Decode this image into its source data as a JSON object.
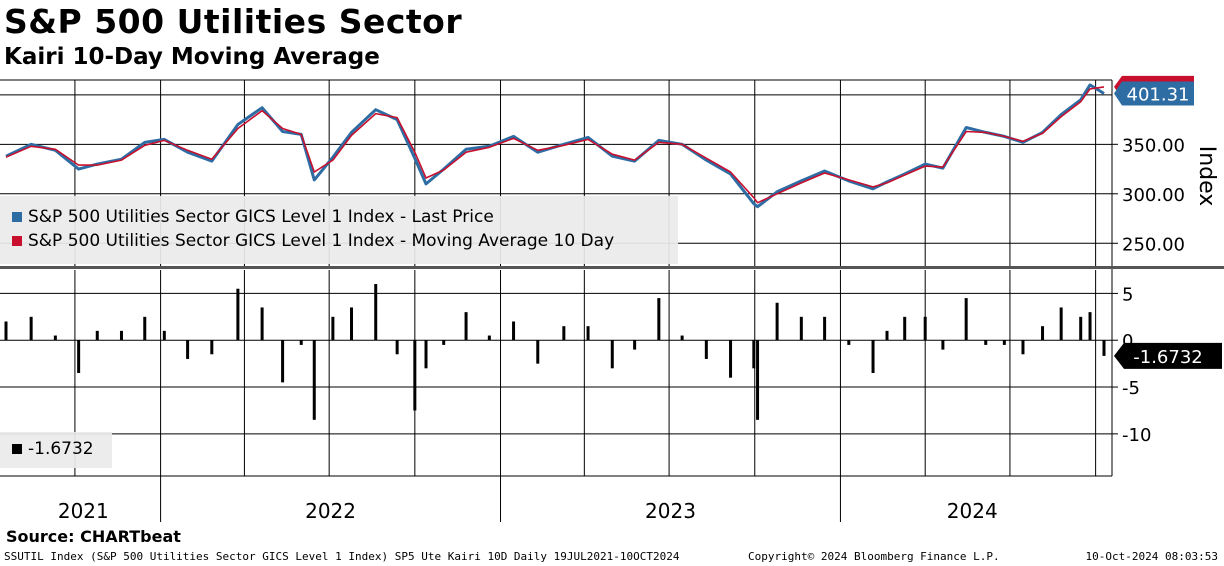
{
  "header": {
    "title": "S&P 500 Utilities Sector",
    "subtitle": "Kairi 10-Day Moving Average"
  },
  "source": "Source: CHARTbeat",
  "footer": {
    "left": "SSUTIL Index (S&P 500 Utilities Sector GICS Level 1 Index) SP5 Ute Kairi 10D  Daily 19JUL2021-10OCT2024",
    "center": "Copyright© 2024 Bloomberg Finance L.P.",
    "right": "10-Oct-2024 08:03:53"
  },
  "colors": {
    "price": "#2e6da4",
    "ma": "#c8102e",
    "kairi": "#000000",
    "legend_bg": "#ebebeb"
  },
  "chart_data": [
    {
      "type": "line",
      "title": "S&P 500 Utilities Sector",
      "ylabel": "Index",
      "ylim": [
        225,
        415
      ],
      "yticks": [
        250,
        300,
        350
      ],
      "ytick_labels": [
        "250.00",
        "300.00",
        "350.00"
      ],
      "x_labels": [
        "2021",
        "2022",
        "2023",
        "2024"
      ],
      "date_range": [
        "2021-07-19",
        "2024-10-10"
      ],
      "grid": true,
      "legend_position": "lower-left",
      "last_value_label": "401.31",
      "series": [
        {
          "name": "S&P 500 Utilities Sector GICS Level 1 Index - Last Price",
          "color": "#2e6da4",
          "x": [
            "2021-07-19",
            "2021-08-15",
            "2021-09-10",
            "2021-10-05",
            "2021-10-25",
            "2021-11-20",
            "2021-12-15",
            "2022-01-05",
            "2022-01-30",
            "2022-02-25",
            "2022-03-25",
            "2022-04-20",
            "2022-05-12",
            "2022-06-01",
            "2022-06-15",
            "2022-07-05",
            "2022-07-25",
            "2022-08-20",
            "2022-09-12",
            "2022-10-01",
            "2022-10-13",
            "2022-11-01",
            "2022-11-25",
            "2022-12-20",
            "2023-01-15",
            "2023-02-10",
            "2023-03-10",
            "2023-04-05",
            "2023-05-01",
            "2023-05-25",
            "2023-06-20",
            "2023-07-15",
            "2023-08-10",
            "2023-09-05",
            "2023-09-30",
            "2023-10-04",
            "2023-10-25",
            "2023-11-20",
            "2023-12-15",
            "2024-01-10",
            "2024-02-05",
            "2024-02-20",
            "2024-03-10",
            "2024-04-01",
            "2024-04-20",
            "2024-05-15",
            "2024-06-05",
            "2024-06-25",
            "2024-07-15",
            "2024-08-05",
            "2024-08-25",
            "2024-09-15",
            "2024-09-25",
            "2024-10-10"
          ],
          "values": [
            338,
            350,
            344,
            325,
            330,
            335,
            352,
            355,
            342,
            333,
            370,
            387,
            363,
            360,
            314,
            337,
            362,
            385,
            375,
            336,
            310,
            325,
            345,
            348,
            358,
            342,
            350,
            357,
            338,
            333,
            354,
            350,
            334,
            320,
            290,
            287,
            302,
            313,
            323,
            313,
            305,
            312,
            320,
            330,
            326,
            367,
            362,
            358,
            352,
            362,
            380,
            395,
            410,
            401.31
          ]
        },
        {
          "name": "S&P 500 Utilities Sector GICS Level 1 Index - Moving Average 10 Day",
          "color": "#c8102e",
          "x": [
            "2021-07-19",
            "2021-08-15",
            "2021-09-10",
            "2021-10-05",
            "2021-10-25",
            "2021-11-20",
            "2021-12-15",
            "2022-01-05",
            "2022-01-30",
            "2022-02-25",
            "2022-03-25",
            "2022-04-20",
            "2022-05-12",
            "2022-06-01",
            "2022-06-15",
            "2022-07-05",
            "2022-07-25",
            "2022-08-20",
            "2022-09-12",
            "2022-10-01",
            "2022-10-13",
            "2022-11-01",
            "2022-11-25",
            "2022-12-20",
            "2023-01-15",
            "2023-02-10",
            "2023-03-10",
            "2023-04-05",
            "2023-05-01",
            "2023-05-25",
            "2023-06-20",
            "2023-07-15",
            "2023-08-10",
            "2023-09-05",
            "2023-09-30",
            "2023-10-04",
            "2023-10-25",
            "2023-11-20",
            "2023-12-15",
            "2024-01-10",
            "2024-02-05",
            "2024-02-20",
            "2024-03-10",
            "2024-04-01",
            "2024-04-20",
            "2024-05-15",
            "2024-06-05",
            "2024-06-25",
            "2024-07-15",
            "2024-08-05",
            "2024-08-25",
            "2024-09-15",
            "2024-09-25",
            "2024-10-10"
          ],
          "values": [
            337,
            348,
            345,
            329,
            329,
            334,
            349,
            354,
            344,
            335,
            366,
            384,
            366,
            360,
            322,
            334,
            359,
            381,
            377,
            342,
            316,
            324,
            342,
            347,
            356,
            344,
            349,
            355,
            340,
            334,
            352,
            350,
            336,
            322,
            296,
            291,
            300,
            311,
            321,
            314,
            307,
            311,
            319,
            328,
            327,
            363,
            362,
            358,
            353,
            361,
            378,
            393,
            406,
            408
          ]
        }
      ]
    },
    {
      "type": "bar",
      "title": "Kairi 10-Day Moving Average",
      "ylim": [
        -14.5,
        7.5
      ],
      "yticks": [
        -10,
        -5,
        0,
        5
      ],
      "ytick_labels": [
        "-10",
        "-5",
        "0",
        "5"
      ],
      "x_labels": [
        "2021",
        "2022",
        "2023",
        "2024"
      ],
      "date_range": [
        "2021-07-19",
        "2024-10-10"
      ],
      "grid": true,
      "legend_position": "lower-left",
      "last_value_label": "-1.6732",
      "series": [
        {
          "name": "-1.6732",
          "color": "#000000",
          "x": [
            "2021-07-19",
            "2021-08-15",
            "2021-09-10",
            "2021-10-05",
            "2021-10-25",
            "2021-11-20",
            "2021-12-15",
            "2022-01-05",
            "2022-01-30",
            "2022-02-25",
            "2022-03-25",
            "2022-04-20",
            "2022-05-12",
            "2022-06-01",
            "2022-06-15",
            "2022-07-05",
            "2022-07-25",
            "2022-08-20",
            "2022-09-12",
            "2022-10-01",
            "2022-10-13",
            "2022-11-01",
            "2022-11-25",
            "2022-12-20",
            "2023-01-15",
            "2023-02-10",
            "2023-03-10",
            "2023-04-05",
            "2023-05-01",
            "2023-05-25",
            "2023-06-20",
            "2023-07-15",
            "2023-08-10",
            "2023-09-05",
            "2023-09-30",
            "2023-10-04",
            "2023-10-25",
            "2023-11-20",
            "2023-12-15",
            "2024-01-10",
            "2024-02-05",
            "2024-02-20",
            "2024-03-10",
            "2024-04-01",
            "2024-04-20",
            "2024-05-15",
            "2024-06-05",
            "2024-06-25",
            "2024-07-15",
            "2024-08-05",
            "2024-08-25",
            "2024-09-15",
            "2024-09-25",
            "2024-10-10"
          ],
          "values": [
            2,
            2.5,
            0.5,
            -3.5,
            1,
            1,
            2.5,
            1,
            -2,
            -1.5,
            5.5,
            3.5,
            -4.5,
            -0.5,
            -8.5,
            2.5,
            3.5,
            6,
            -1.5,
            -7.5,
            -3,
            -0.5,
            3,
            0.5,
            2,
            -2.5,
            1.5,
            1.5,
            -3,
            -1,
            4.5,
            0.5,
            -2,
            -4,
            -3,
            -8.5,
            4,
            2.5,
            2.5,
            -0.5,
            -3.5,
            1,
            2.5,
            2.5,
            -1,
            4.5,
            -0.5,
            -0.5,
            -1.5,
            1.5,
            3.5,
            2.5,
            3,
            -1.6732
          ]
        }
      ]
    }
  ]
}
